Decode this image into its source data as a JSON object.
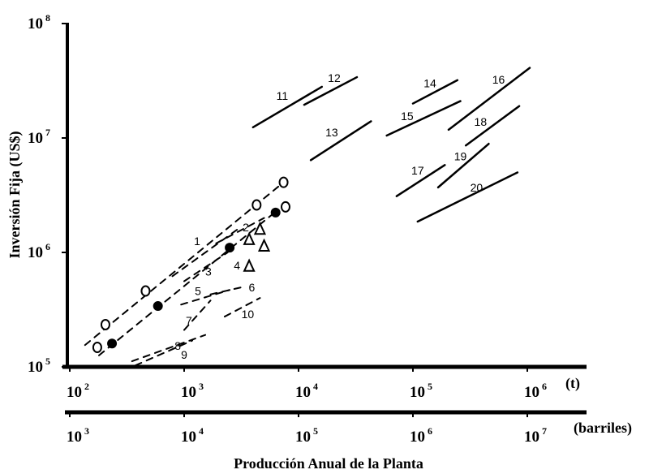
{
  "chart_data": {
    "type": "line",
    "xscale": "log",
    "yscale": "log",
    "xlabel": "Producción Anual de la Planta",
    "ylabel": "Inversión Fija (US$)",
    "xlim": [
      100,
      2000000
    ],
    "ylim": [
      100000,
      100000000
    ],
    "grid": false,
    "x_ticks": [
      {
        "base": "10",
        "exp": "2",
        "value": 100
      },
      {
        "base": "10",
        "exp": "3",
        "value": 1000
      },
      {
        "base": "10",
        "exp": "4",
        "value": 10000
      },
      {
        "base": "10",
        "exp": "5",
        "value": 100000
      },
      {
        "base": "10",
        "exp": "6",
        "value": 1000000
      }
    ],
    "x_unit": "(t)",
    "x2_ticks": [
      {
        "base": "10",
        "exp": "3"
      },
      {
        "base": "10",
        "exp": "4"
      },
      {
        "base": "10",
        "exp": "5"
      },
      {
        "base": "10",
        "exp": "6"
      },
      {
        "base": "10",
        "exp": "7"
      }
    ],
    "x2_unit": "(barriles)",
    "y_ticks": [
      {
        "base": "10",
        "exp": "5",
        "value": 100000
      },
      {
        "base": "10",
        "exp": "6",
        "value": 1000000
      },
      {
        "base": "10",
        "exp": "7",
        "value": 10000000
      },
      {
        "base": "10",
        "exp": "8",
        "value": 100000000
      }
    ],
    "series": [
      {
        "label": "11",
        "style": "solid",
        "x": [
          4000,
          16000
        ],
        "y": [
          12400000,
          28000000
        ],
        "label_at": [
          7200,
          23400000
        ]
      },
      {
        "label": "12",
        "style": "solid",
        "x": [
          11200,
          32400
        ],
        "y": [
          19500000,
          34000000
        ],
        "label_at": [
          20500,
          33500000
        ]
      },
      {
        "label": "13",
        "style": "solid",
        "x": [
          12800,
          43000
        ],
        "y": [
          6400000,
          14000000
        ],
        "label_at": [
          19500,
          11200000
        ]
      },
      {
        "label": "14",
        "style": "solid",
        "x": [
          100000,
          245000
        ],
        "y": [
          20000000,
          32000000
        ],
        "label_at": [
          141000,
          30000000
        ]
      },
      {
        "label": "15",
        "style": "solid",
        "x": [
          59000,
          260000
        ],
        "y": [
          10500000,
          21000000
        ],
        "label_at": [
          89000,
          15600000
        ]
      },
      {
        "label": "16",
        "style": "solid",
        "x": [
          205000,
          1050000
        ],
        "y": [
          11800000,
          41000000
        ],
        "label_at": [
          560000,
          32400000
        ]
      },
      {
        "label": "17",
        "style": "solid",
        "x": [
          72000,
          190000
        ],
        "y": [
          3100000,
          5800000
        ],
        "label_at": [
          110000,
          5200000
        ]
      },
      {
        "label": "18",
        "style": "solid",
        "x": [
          290000,
          850000
        ],
        "y": [
          8600000,
          19000000
        ],
        "label_at": [
          390000,
          13900000
        ]
      },
      {
        "label": "19",
        "style": "solid",
        "x": [
          166000,
          460000
        ],
        "y": [
          3700000,
          8900000
        ],
        "label_at": [
          260000,
          6900000
        ]
      },
      {
        "label": "20",
        "style": "solid",
        "x": [
          110000,
          820000
        ],
        "y": [
          1860000,
          5000000
        ],
        "label_at": [
          360000,
          3700000
        ]
      },
      {
        "label": "",
        "style": "dashed",
        "x": [
          136,
          7400
        ],
        "y": [
          155000,
          4100000
        ]
      },
      {
        "label": "",
        "style": "dashed",
        "x": [
          180,
          5800
        ],
        "y": [
          126000,
          2120000
        ]
      },
      {
        "label": "1",
        "style": "dashed",
        "x": [
          790,
          2900
        ],
        "y": [
          620000,
          1580000
        ],
        "label_at": [
          1300,
          1260000
        ]
      },
      {
        "label": "2",
        "style": "dashed",
        "x": [
          1900,
          5000
        ],
        "y": [
          1200000,
          2000000
        ],
        "label_at": [
          3460,
          1660000
        ]
      },
      {
        "label": "3",
        "style": "dashed",
        "x": [
          1000,
          2400
        ],
        "y": [
          560000,
          1000000
        ],
        "label_at": [
          1630,
          680000
        ]
      },
      {
        "label": "4",
        "style": "none",
        "x": [],
        "y": [],
        "label_at": [
          2900,
          770000
        ]
      },
      {
        "label": "5",
        "style": "dashed",
        "x": [
          940,
          2500
        ],
        "y": [
          350000,
          470000
        ],
        "label_at": [
          1320,
          460000
        ]
      },
      {
        "label": "6",
        "style": "dashed",
        "x": [
          1700,
          3300
        ],
        "y": [
          430000,
          500000
        ],
        "label_at": [
          3900,
          496000
        ]
      },
      {
        "label": "7",
        "style": "dashed",
        "x": [
          1000,
          1700
        ],
        "y": [
          210000,
          380000
        ],
        "label_at": [
          1100,
          254000
        ]
      },
      {
        "label": "8",
        "style": "dashed",
        "x": [
          350,
          1530
        ],
        "y": [
          112000,
          190000
        ],
        "label_at": [
          880,
          153000
        ]
      },
      {
        "label": "9",
        "style": "dashed",
        "x": [
          375,
          1180
        ],
        "y": [
          103000,
          170000
        ],
        "label_at": [
          1000,
          128000
        ]
      },
      {
        "label": "10",
        "style": "dashed",
        "x": [
          2260,
          4600
        ],
        "y": [
          275000,
          400000
        ],
        "label_at": [
          3600,
          290000
        ]
      }
    ],
    "markers": [
      {
        "shape": "open-circle",
        "x": 174,
        "y": 148000
      },
      {
        "shape": "open-circle",
        "x": 205,
        "y": 234000
      },
      {
        "shape": "open-circle",
        "x": 460,
        "y": 460000
      },
      {
        "shape": "open-circle",
        "x": 4300,
        "y": 2600000
      },
      {
        "shape": "open-circle",
        "x": 7400,
        "y": 4100000
      },
      {
        "shape": "open-circle",
        "x": 7700,
        "y": 2500000
      },
      {
        "shape": "filled-circle",
        "x": 234,
        "y": 160000
      },
      {
        "shape": "filled-circle",
        "x": 590,
        "y": 340000
      },
      {
        "shape": "filled-circle",
        "x": 2500,
        "y": 1100000
      },
      {
        "shape": "filled-circle",
        "x": 6300,
        "y": 2230000
      },
      {
        "shape": "triangle",
        "x": 4600,
        "y": 1600000
      },
      {
        "shape": "triangle",
        "x": 3700,
        "y": 1300000
      },
      {
        "shape": "triangle",
        "x": 5000,
        "y": 1140000
      },
      {
        "shape": "triangle",
        "x": 3700,
        "y": 760000
      }
    ],
    "colors": {
      "ink": "#000000",
      "background": "#ffffff"
    }
  }
}
